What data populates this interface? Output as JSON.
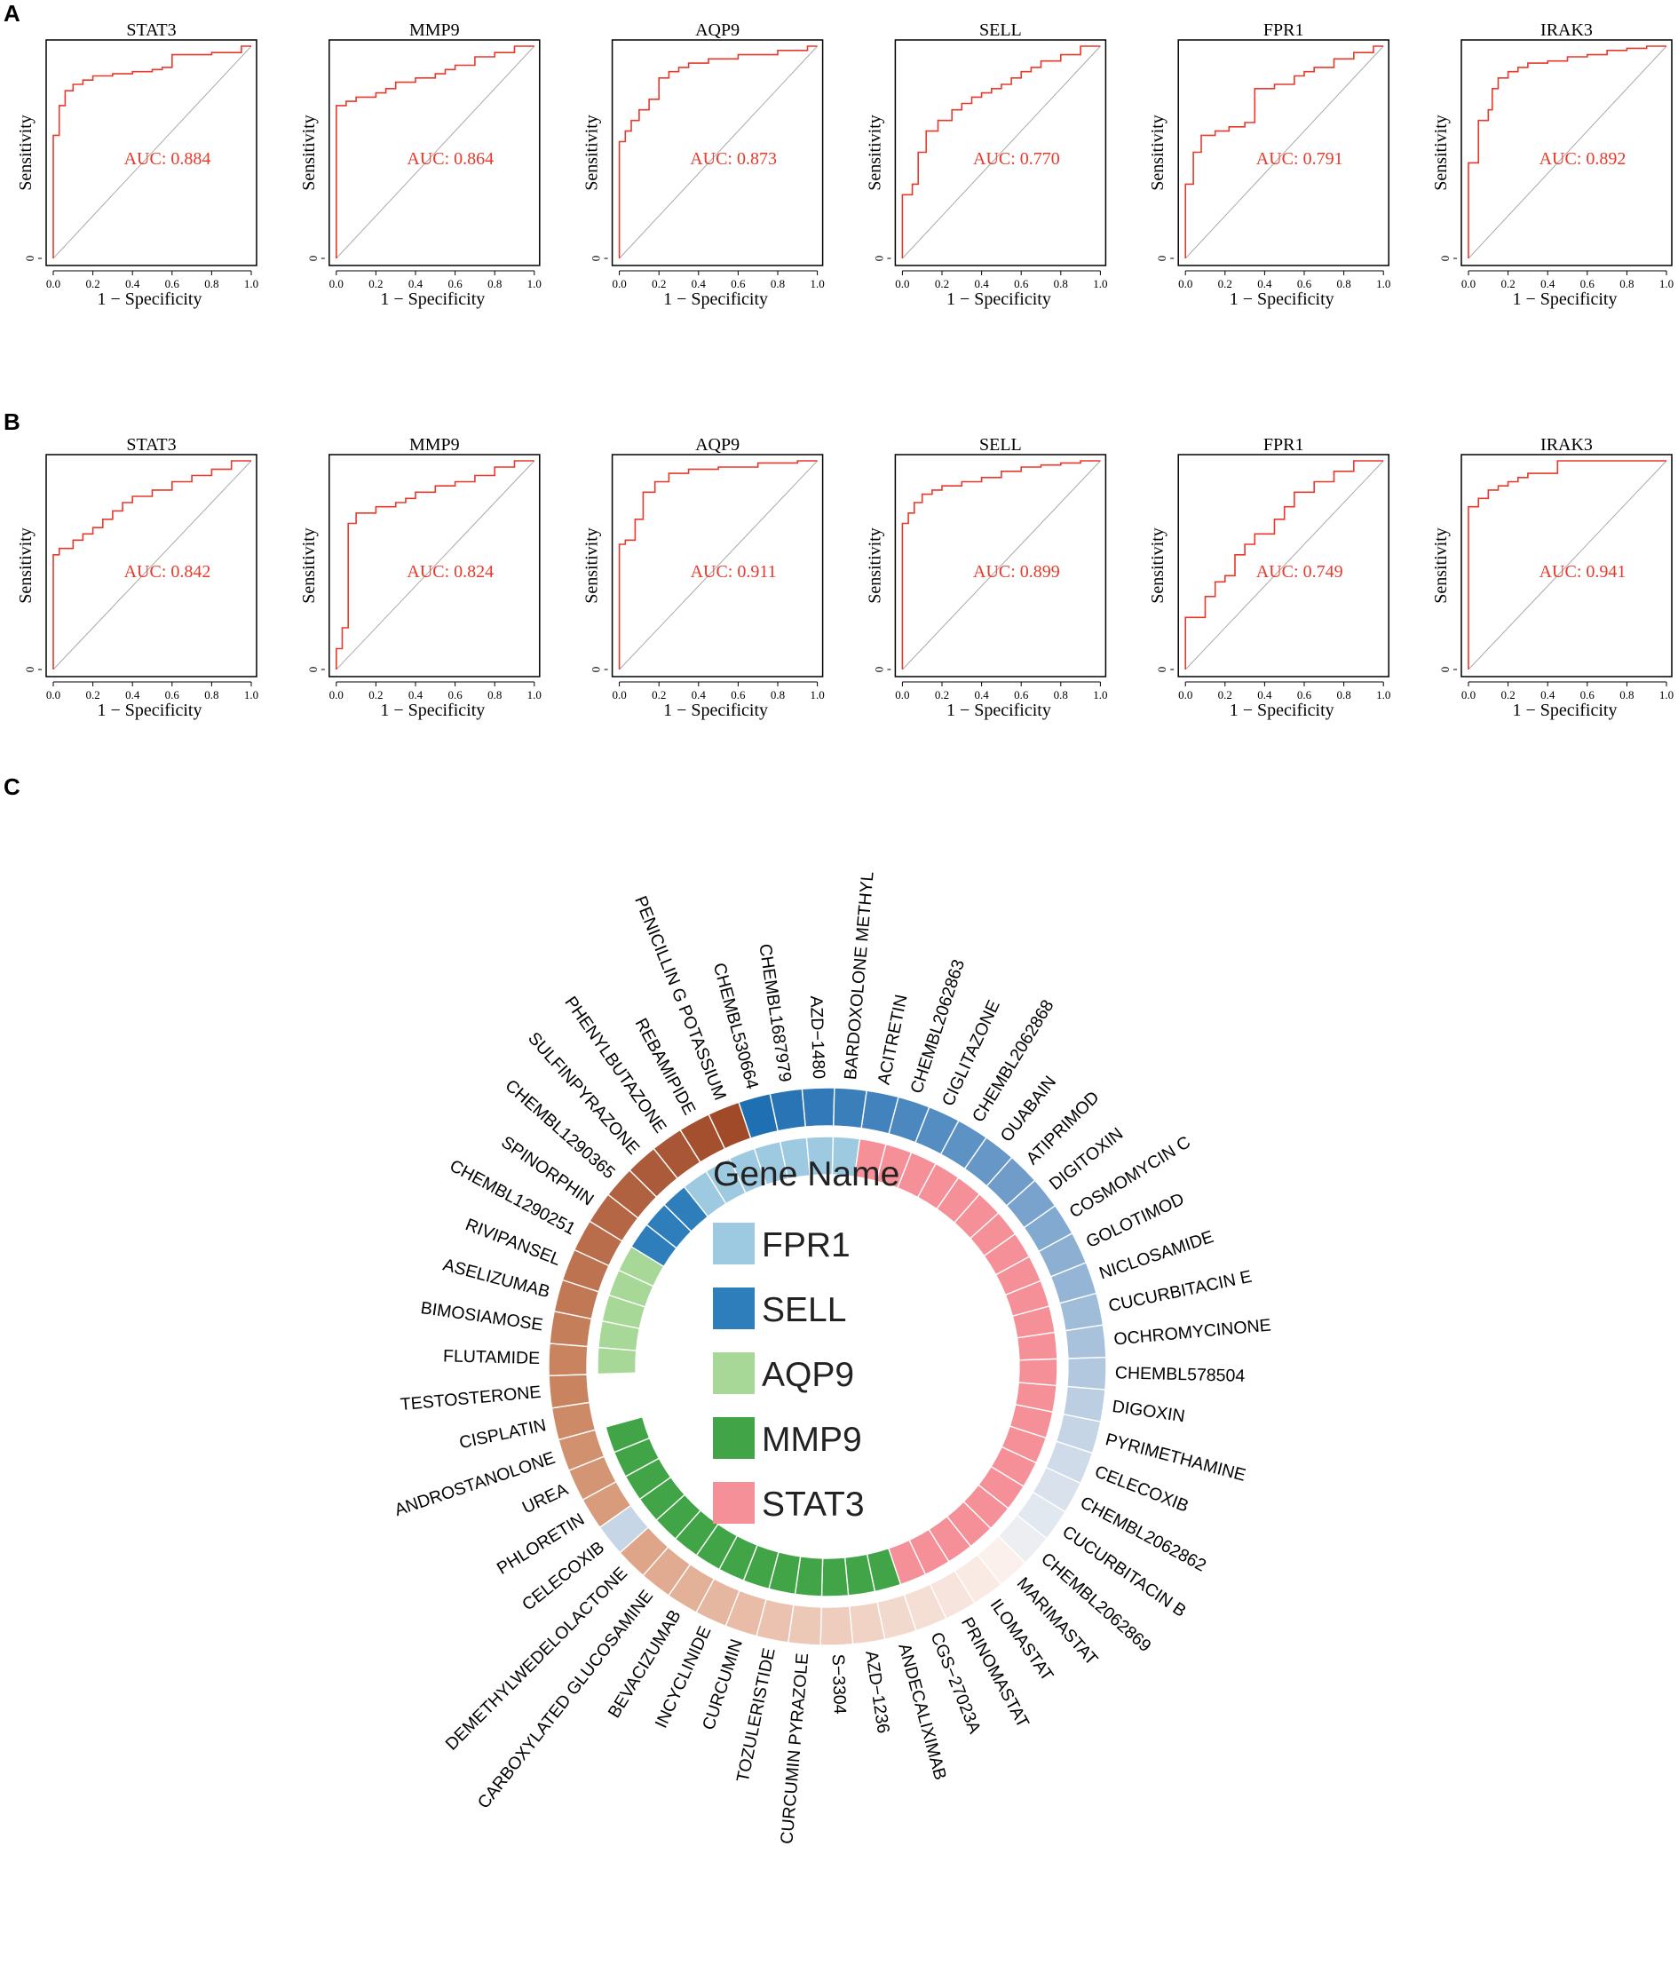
{
  "panels": {
    "A": {
      "letter": "A",
      "plots": [
        {
          "gene": "STAT3",
          "auc_label": "AUC: 0.884"
        },
        {
          "gene": "MMP9",
          "auc_label": "AUC: 0.864"
        },
        {
          "gene": "AQP9",
          "auc_label": "AUC: 0.873"
        },
        {
          "gene": "SELL",
          "auc_label": "AUC: 0.770"
        },
        {
          "gene": "FPR1",
          "auc_label": "AUC: 0.791"
        },
        {
          "gene": "IRAK3",
          "auc_label": "AUC: 0.892"
        }
      ]
    },
    "B": {
      "letter": "B",
      "plots": [
        {
          "gene": "STAT3",
          "auc_label": "AUC: 0.842"
        },
        {
          "gene": "MMP9",
          "auc_label": "AUC: 0.824"
        },
        {
          "gene": "AQP9",
          "auc_label": "AUC: 0.911"
        },
        {
          "gene": "SELL",
          "auc_label": "AUC: 0.899"
        },
        {
          "gene": "FPR1",
          "auc_label": "AUC: 0.749"
        },
        {
          "gene": "IRAK3",
          "auc_label": "AUC: 0.941"
        }
      ]
    },
    "C": {
      "letter": "C"
    }
  },
  "roc_axes": {
    "xlabel": "1 − Specificity",
    "ylabel": "Sensitivity",
    "x_ticks": [
      "0.0",
      "0.2",
      "0.4",
      "0.6",
      "0.8",
      "1.0"
    ],
    "y_ticks": [
      "0"
    ]
  },
  "colors": {
    "roc_curve": "#e8392b",
    "diagonal": "#aaaaaa",
    "auc_text": "#e8392b"
  },
  "legend": {
    "title": "Gene Name",
    "items": [
      {
        "label": "FPR1",
        "color": "#9ecae1"
      },
      {
        "label": "SELL",
        "color": "#2e7ebc"
      },
      {
        "label": "AQP9",
        "color": "#a8d898"
      },
      {
        "label": "MMP9",
        "color": "#41a547"
      },
      {
        "label": "STAT3",
        "color": "#f58f98"
      }
    ]
  },
  "chart_data": [
    {
      "type": "line",
      "panel": "A",
      "title": "STAT3",
      "xlabel": "1 − Specificity",
      "ylabel": "Sensitivity",
      "xlim": [
        0,
        1
      ],
      "ylim": [
        0,
        1
      ],
      "annotation": "AUC: 0.884",
      "x": [
        0,
        0,
        0.03,
        0.03,
        0.06,
        0.06,
        0.1,
        0.15,
        0.2,
        0.3,
        0.4,
        0.5,
        0.55,
        0.6,
        0.6,
        0.8,
        0.95,
        1.0
      ],
      "y": [
        0,
        0.58,
        0.58,
        0.72,
        0.72,
        0.79,
        0.82,
        0.84,
        0.86,
        0.87,
        0.88,
        0.89,
        0.9,
        0.9,
        0.96,
        0.97,
        1.0,
        1.0
      ]
    },
    {
      "type": "line",
      "panel": "A",
      "title": "MMP9",
      "xlabel": "1 − Specificity",
      "ylabel": "Sensitivity",
      "xlim": [
        0,
        1
      ],
      "ylim": [
        0,
        1
      ],
      "annotation": "AUC: 0.864",
      "x": [
        0,
        0,
        0.05,
        0.1,
        0.2,
        0.25,
        0.3,
        0.4,
        0.5,
        0.55,
        0.6,
        0.7,
        0.8,
        0.9,
        1.0
      ],
      "y": [
        0,
        0.72,
        0.74,
        0.76,
        0.78,
        0.8,
        0.83,
        0.85,
        0.87,
        0.89,
        0.91,
        0.95,
        0.97,
        1.0,
        1.0
      ]
    },
    {
      "type": "line",
      "panel": "A",
      "title": "AQP9",
      "xlabel": "1 − Specificity",
      "ylabel": "Sensitivity",
      "xlim": [
        0,
        1
      ],
      "ylim": [
        0,
        1
      ],
      "annotation": "AUC: 0.873",
      "x": [
        0,
        0,
        0.03,
        0.06,
        0.1,
        0.15,
        0.2,
        0.2,
        0.25,
        0.3,
        0.35,
        0.45,
        0.6,
        0.8,
        0.95,
        1.0
      ],
      "y": [
        0,
        0.55,
        0.6,
        0.65,
        0.7,
        0.75,
        0.8,
        0.85,
        0.88,
        0.9,
        0.92,
        0.94,
        0.96,
        0.98,
        1.0,
        1.0
      ]
    },
    {
      "type": "line",
      "panel": "A",
      "title": "SELL",
      "xlabel": "1 − Specificity",
      "ylabel": "Sensitivity",
      "xlim": [
        0,
        1
      ],
      "ylim": [
        0,
        1
      ],
      "annotation": "AUC: 0.770",
      "x": [
        0,
        0,
        0.05,
        0.08,
        0.12,
        0.18,
        0.25,
        0.3,
        0.35,
        0.4,
        0.45,
        0.5,
        0.55,
        0.6,
        0.65,
        0.7,
        0.8,
        0.9,
        1.0
      ],
      "y": [
        0,
        0.3,
        0.35,
        0.5,
        0.6,
        0.65,
        0.7,
        0.73,
        0.76,
        0.78,
        0.8,
        0.82,
        0.85,
        0.88,
        0.9,
        0.93,
        0.96,
        1.0,
        1.0
      ]
    },
    {
      "type": "line",
      "panel": "A",
      "title": "FPR1",
      "xlabel": "1 − Specificity",
      "ylabel": "Sensitivity",
      "xlim": [
        0,
        1
      ],
      "ylim": [
        0,
        1
      ],
      "annotation": "AUC: 0.791",
      "x": [
        0,
        0,
        0.04,
        0.08,
        0.15,
        0.22,
        0.3,
        0.35,
        0.35,
        0.45,
        0.55,
        0.6,
        0.65,
        0.75,
        0.85,
        0.95,
        1.0
      ],
      "y": [
        0,
        0.35,
        0.5,
        0.58,
        0.6,
        0.62,
        0.64,
        0.7,
        0.8,
        0.82,
        0.86,
        0.88,
        0.9,
        0.94,
        0.97,
        1.0,
        1.0
      ]
    },
    {
      "type": "line",
      "panel": "A",
      "title": "IRAK3",
      "xlabel": "1 − Specificity",
      "ylabel": "Sensitivity",
      "xlim": [
        0,
        1
      ],
      "ylim": [
        0,
        1
      ],
      "annotation": "AUC: 0.892",
      "x": [
        0,
        0,
        0.05,
        0.05,
        0.1,
        0.12,
        0.15,
        0.2,
        0.25,
        0.3,
        0.4,
        0.5,
        0.6,
        0.7,
        0.8,
        0.9,
        1.0
      ],
      "y": [
        0,
        0.45,
        0.45,
        0.65,
        0.7,
        0.8,
        0.85,
        0.88,
        0.9,
        0.92,
        0.93,
        0.95,
        0.96,
        0.98,
        0.99,
        1.0,
        1.0
      ]
    },
    {
      "type": "line",
      "panel": "B",
      "title": "STAT3",
      "xlabel": "1 − Specificity",
      "ylabel": "Sensitivity",
      "xlim": [
        0,
        1
      ],
      "ylim": [
        0,
        1
      ],
      "annotation": "AUC: 0.842",
      "x": [
        0,
        0,
        0.03,
        0.1,
        0.15,
        0.2,
        0.25,
        0.3,
        0.35,
        0.4,
        0.5,
        0.6,
        0.7,
        0.8,
        0.9,
        1.0
      ],
      "y": [
        0,
        0.55,
        0.58,
        0.62,
        0.65,
        0.68,
        0.72,
        0.76,
        0.8,
        0.83,
        0.86,
        0.9,
        0.93,
        0.96,
        1.0,
        1.0
      ]
    },
    {
      "type": "line",
      "panel": "B",
      "title": "MMP9",
      "xlabel": "1 − Specificity",
      "ylabel": "Sensitivity",
      "xlim": [
        0,
        1
      ],
      "ylim": [
        0,
        1
      ],
      "annotation": "AUC: 0.824",
      "x": [
        0,
        0,
        0.03,
        0.06,
        0.06,
        0.1,
        0.2,
        0.3,
        0.35,
        0.4,
        0.5,
        0.6,
        0.7,
        0.8,
        0.9,
        1.0
      ],
      "y": [
        0,
        0.1,
        0.2,
        0.4,
        0.7,
        0.75,
        0.78,
        0.8,
        0.82,
        0.85,
        0.88,
        0.9,
        0.93,
        0.97,
        1.0,
        1.0
      ]
    },
    {
      "type": "line",
      "panel": "B",
      "title": "AQP9",
      "xlabel": "1 − Specificity",
      "ylabel": "Sensitivity",
      "xlim": [
        0,
        1
      ],
      "ylim": [
        0,
        1
      ],
      "annotation": "AUC: 0.911",
      "x": [
        0,
        0,
        0.03,
        0.08,
        0.12,
        0.18,
        0.25,
        0.35,
        0.5,
        0.7,
        0.9,
        1.0
      ],
      "y": [
        0,
        0.6,
        0.62,
        0.72,
        0.85,
        0.9,
        0.94,
        0.96,
        0.97,
        0.99,
        1.0,
        1.0
      ]
    },
    {
      "type": "line",
      "panel": "B",
      "title": "SELL",
      "xlabel": "1 − Specificity",
      "ylabel": "Sensitivity",
      "xlim": [
        0,
        1
      ],
      "ylim": [
        0,
        1
      ],
      "annotation": "AUC: 0.899",
      "x": [
        0,
        0,
        0.03,
        0.06,
        0.1,
        0.15,
        0.2,
        0.3,
        0.4,
        0.5,
        0.6,
        0.7,
        0.8,
        0.9,
        1.0
      ],
      "y": [
        0,
        0.7,
        0.75,
        0.8,
        0.84,
        0.86,
        0.88,
        0.9,
        0.92,
        0.95,
        0.97,
        0.98,
        0.99,
        1.0,
        1.0
      ]
    },
    {
      "type": "line",
      "panel": "B",
      "title": "FPR1",
      "xlabel": "1 − Specificity",
      "ylabel": "Sensitivity",
      "xlim": [
        0,
        1
      ],
      "ylim": [
        0,
        1
      ],
      "annotation": "AUC: 0.749",
      "x": [
        0,
        0,
        0.1,
        0.1,
        0.15,
        0.2,
        0.25,
        0.3,
        0.35,
        0.45,
        0.5,
        0.55,
        0.65,
        0.75,
        0.85,
        1.0
      ],
      "y": [
        0,
        0.25,
        0.25,
        0.35,
        0.42,
        0.45,
        0.55,
        0.6,
        0.65,
        0.72,
        0.78,
        0.85,
        0.9,
        0.95,
        1.0,
        1.0
      ]
    },
    {
      "type": "line",
      "panel": "B",
      "title": "IRAK3",
      "xlabel": "1 − Specificity",
      "ylabel": "Sensitivity",
      "xlim": [
        0,
        1
      ],
      "ylim": [
        0,
        1
      ],
      "annotation": "AUC: 0.941",
      "x": [
        0,
        0,
        0.05,
        0.1,
        0.15,
        0.2,
        0.25,
        0.3,
        0.45,
        0.6,
        0.8,
        1.0
      ],
      "y": [
        0,
        0.78,
        0.82,
        0.86,
        0.88,
        0.9,
        0.92,
        0.94,
        1.0,
        1.0,
        1.0,
        1.0
      ]
    },
    {
      "type": "circos",
      "panel": "C",
      "legend_title": "Gene Name",
      "inner_ring_order": [
        "AQP9",
        "SELL",
        "FPR1",
        "STAT3",
        "MMP9"
      ],
      "inner_ring_counts": {
        "AQP9": 5,
        "SELL": 3,
        "FPR1": 7,
        "STAT3": 23,
        "MMP9": 14
      },
      "drugs": [
        "FLUTAMIDE",
        "BIMOSIAMOSE",
        "ASELIZUMAB",
        "RIVIPANSEL",
        "CHEMBL1290251",
        "SPINORPHIN",
        "CHEMBL1290365",
        "SULFINPYRAZONE",
        "PHENYLBUTAZONE",
        "REBAMIPIDE",
        "PENICILLIN G POTASSIUM",
        "CHEMBL530664",
        "CHEMBL1687979",
        "AZD−1480",
        "BARDOXOLONE METHYL",
        "ACITRETIN",
        "CHEMBL2062863",
        "CIGLITAZONE",
        "CHEMBL2062868",
        "OUABAIN",
        "ATIPRIMOD",
        "DIGITOXIN",
        "COSMOMYCIN C",
        "GOLOTIMOD",
        "NICLOSAMIDE",
        "CUCURBITACIN E",
        "OCHROMYCINONE",
        "CHEMBL578504",
        "DIGOXIN",
        "PYRIMETHAMINE",
        "CELECOXIB",
        "CHEMBL2062862",
        "CUCURBITACIN B",
        "CHEMBL2062869",
        "MARIMASTAT",
        "ILOMASTAT",
        "PRINOMASTAT",
        "CGS−27023A",
        "ANDECALIXIMAB",
        "AZD−1236",
        "S−3304",
        "CURCUMIN PYRAZOLE",
        "TOZULERISTIDE",
        "CURCUMIN",
        "INCYCLINIDE",
        "BEVACIZUMAB",
        "CARBOXYLATED GLUCOSAMINE",
        "DEMETHYLWEDELOLACTONE",
        "CELECOXIB",
        "PHLORETIN",
        "UREA",
        "ANDROSTANOLONE",
        "CISPLATIN",
        "TESTOSTERONE"
      ]
    }
  ]
}
